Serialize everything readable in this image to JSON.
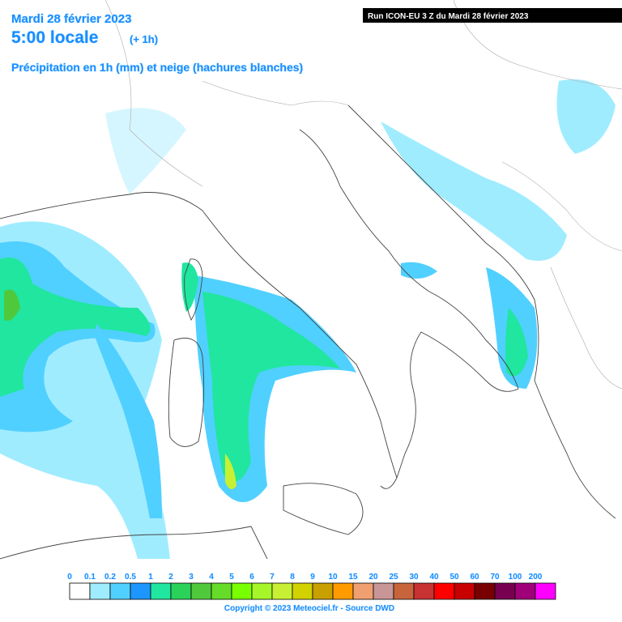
{
  "header": {
    "date": "Mardi 28 février 2023",
    "time": "5:00 locale",
    "offset": "(+ 1h)",
    "subtitle": "Précipitation en 1h (mm) et neige (hachures blanches)",
    "run": "Run ICON-EU 3 Z du Mardi 28 février 2023"
  },
  "legend": [
    {
      "label": "0",
      "color": "#ffffff"
    },
    {
      "label": "0.1",
      "color": "#a0ecff"
    },
    {
      "label": "0.2",
      "color": "#50d0ff"
    },
    {
      "label": "0.5",
      "color": "#1e96ff"
    },
    {
      "label": "1",
      "color": "#20e6a0"
    },
    {
      "label": "2",
      "color": "#2ad25a"
    },
    {
      "label": "3",
      "color": "#50c83c"
    },
    {
      "label": "4",
      "color": "#64dc28"
    },
    {
      "label": "5",
      "color": "#78ff00"
    },
    {
      "label": "6",
      "color": "#a5f528"
    },
    {
      "label": "7",
      "color": "#c8f032"
    },
    {
      "label": "8",
      "color": "#d2d200"
    },
    {
      "label": "9",
      "color": "#c8a000"
    },
    {
      "label": "10",
      "color": "#ff9b00"
    },
    {
      "label": "15",
      "color": "#f0a070"
    },
    {
      "label": "20",
      "color": "#c89696"
    },
    {
      "label": "25",
      "color": "#c8643c"
    },
    {
      "label": "30",
      "color": "#c83232"
    },
    {
      "label": "40",
      "color": "#ff0000"
    },
    {
      "label": "50",
      "color": "#c80000"
    },
    {
      "label": "60",
      "color": "#780000"
    },
    {
      "label": "70",
      "color": "#780050"
    },
    {
      "label": "100",
      "color": "#a00078"
    },
    {
      "label": "200",
      "color": "#ff00ff"
    }
  ],
  "copyright": "Copyright © 2023 Meteociel.fr - Source DWD"
}
